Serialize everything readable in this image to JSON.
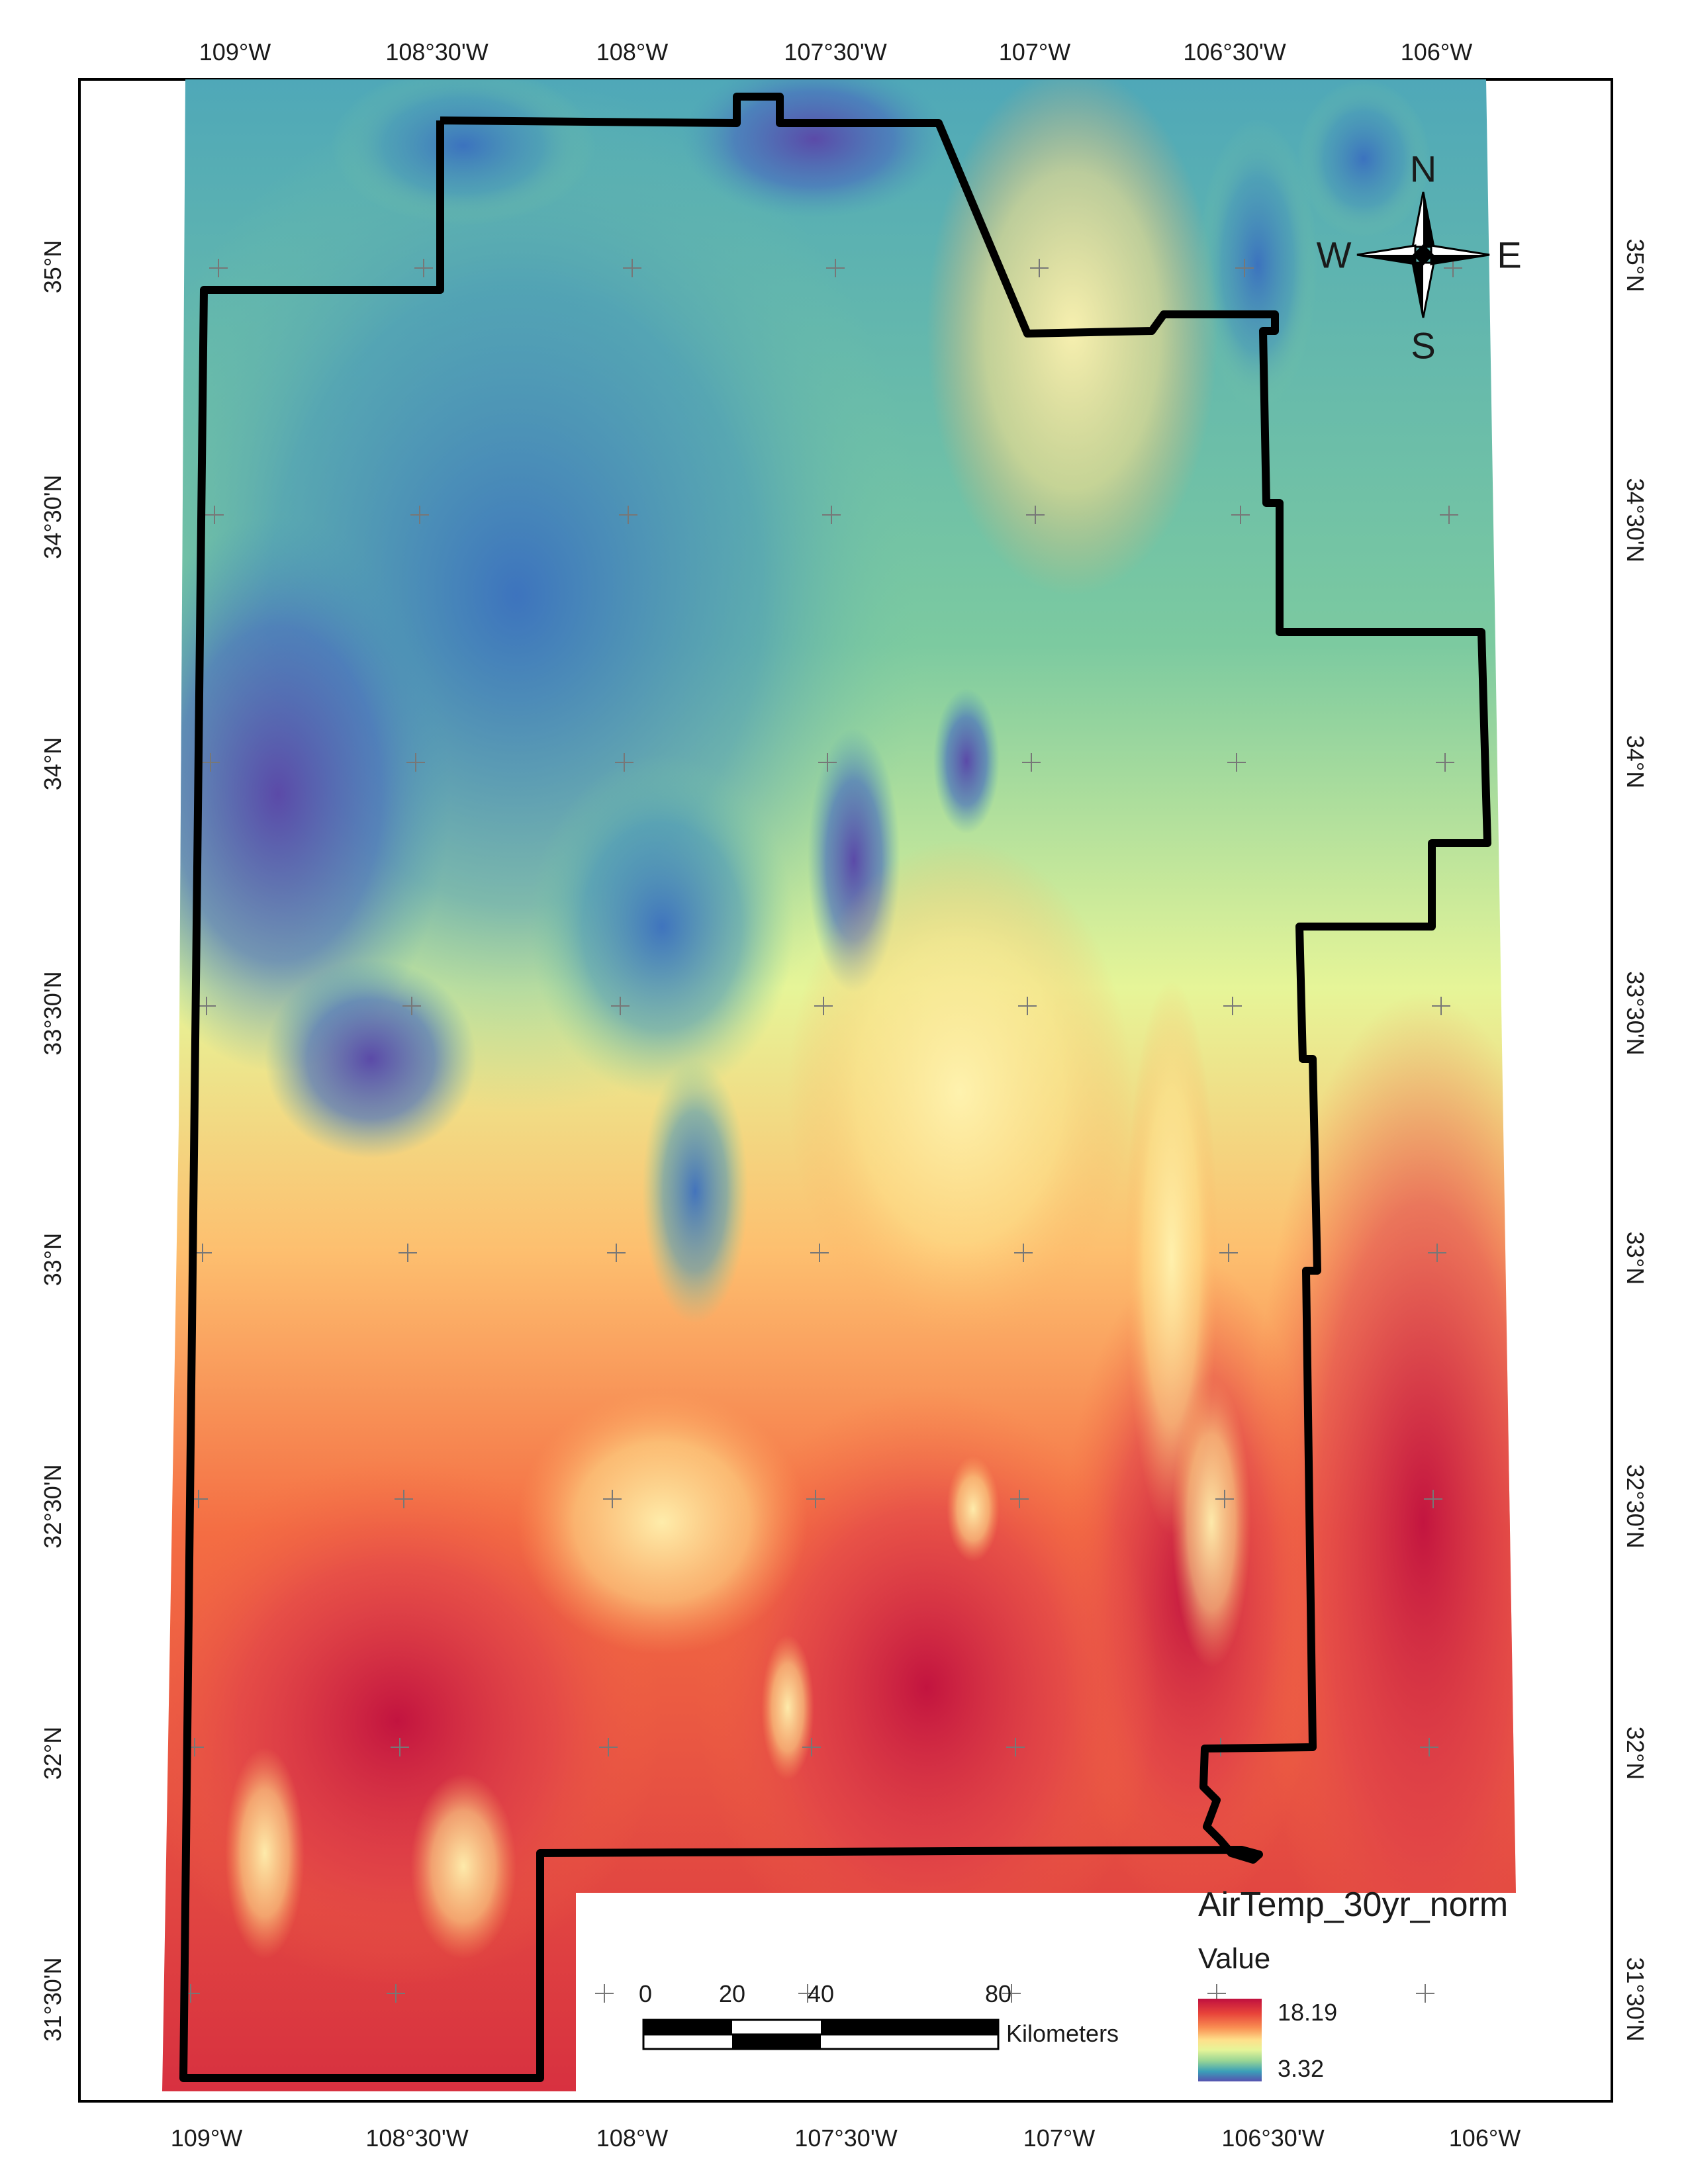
{
  "longitude_labels": [
    "109°W",
    "108°30'W",
    "108°W",
    "107°30'W",
    "107°W",
    "106°30'W",
    "106°W"
  ],
  "latitude_labels": [
    "35°N",
    "34°30'N",
    "34°N",
    "33°30'N",
    "33°N",
    "32°30'N",
    "32°N",
    "31°30'N"
  ],
  "legend": {
    "title": "AirTemp_30yr_norm",
    "subtitle": "Value",
    "high": "18.19",
    "low": "3.32",
    "ramp_colors": [
      "#c0103f",
      "#e8443a",
      "#f98e52",
      "#fee08b",
      "#e6f598",
      "#99d594",
      "#3a9fb8",
      "#5752b0"
    ]
  },
  "scale_bar": {
    "ticks": [
      "0",
      "20",
      "40",
      "80"
    ],
    "unit": "Kilometers"
  },
  "north_arrow": {
    "n": "N",
    "s": "S",
    "e": "E",
    "w": "W"
  },
  "colors": {
    "boundary": "#000000",
    "warm": "#d7303f",
    "cool": "#4a7fc0",
    "mid": "#fee08b"
  }
}
